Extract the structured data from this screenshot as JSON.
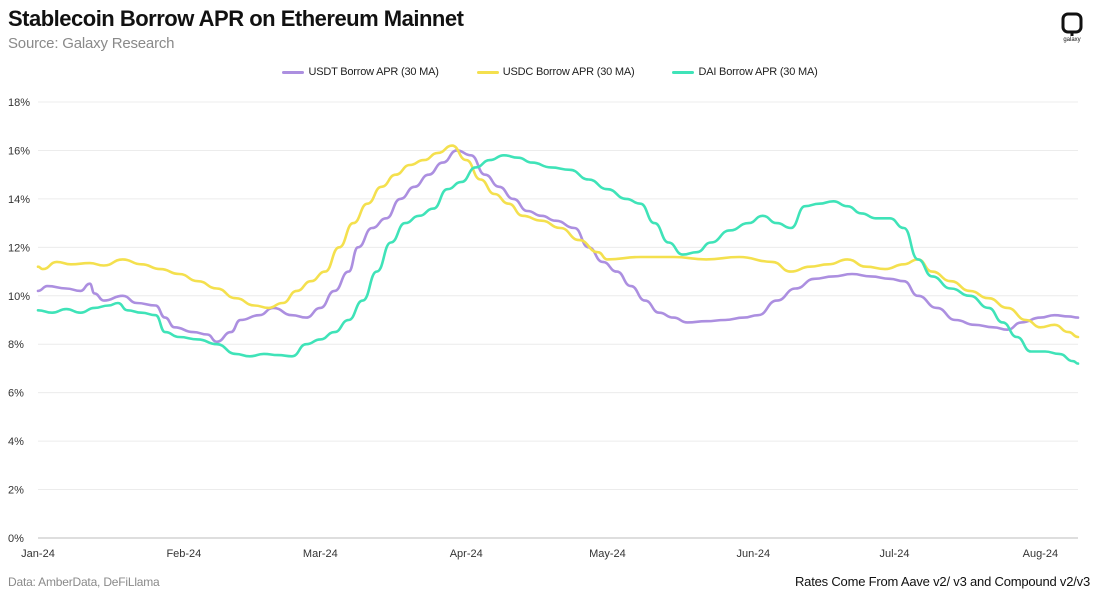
{
  "header": {
    "title": "Stablecoin Borrow APR on Ethereum Mainnet",
    "subtitle": "Source: Galaxy Research",
    "logo_text": "galaxy"
  },
  "footer": {
    "left": "Data: AmberData, DeFiLlama",
    "right": "Rates Come From Aave v2/ v3 and Compound v2/v3"
  },
  "chart_data": {
    "type": "line",
    "title": "Stablecoin Borrow APR on Ethereum Mainnet",
    "xlabel": "",
    "ylabel": "",
    "xlim": [
      "2024-01-01",
      "2024-08-09"
    ],
    "ylim": [
      0,
      18
    ],
    "y_ticks": [
      0,
      2,
      4,
      6,
      8,
      10,
      12,
      14,
      16,
      18
    ],
    "y_tick_labels": [
      "0%",
      "2%",
      "4%",
      "6%",
      "8%",
      "10%",
      "12%",
      "14%",
      "16%",
      "18%"
    ],
    "x_ticks": [
      "2024-01-01",
      "2024-02-01",
      "2024-03-01",
      "2024-04-01",
      "2024-05-01",
      "2024-06-01",
      "2024-07-01",
      "2024-08-01"
    ],
    "x_tick_labels": [
      "Jan-24",
      "Feb-24",
      "Mar-24",
      "Apr-24",
      "May-24",
      "Jun-24",
      "Jul-24",
      "Aug-24"
    ],
    "grid": true,
    "legend_position": "top-center",
    "series": [
      {
        "name": "USDT Borrow APR (30 MA)",
        "color": "#ac8fe0",
        "points": [
          [
            "2024-01-01",
            10.2
          ],
          [
            "2024-01-03",
            10.4
          ],
          [
            "2024-01-07",
            10.3
          ],
          [
            "2024-01-10",
            10.2
          ],
          [
            "2024-01-12",
            10.5
          ],
          [
            "2024-01-13",
            10.1
          ],
          [
            "2024-01-15",
            9.8
          ],
          [
            "2024-01-19",
            10.0
          ],
          [
            "2024-01-22",
            9.7
          ],
          [
            "2024-01-26",
            9.6
          ],
          [
            "2024-01-28",
            9.1
          ],
          [
            "2024-01-30",
            8.7
          ],
          [
            "2024-02-03",
            8.5
          ],
          [
            "2024-02-06",
            8.4
          ],
          [
            "2024-02-08",
            8.1
          ],
          [
            "2024-02-11",
            8.5
          ],
          [
            "2024-02-13",
            9.0
          ],
          [
            "2024-02-17",
            9.2
          ],
          [
            "2024-02-20",
            9.5
          ],
          [
            "2024-02-24",
            9.2
          ],
          [
            "2024-02-27",
            9.1
          ],
          [
            "2024-03-01",
            9.5
          ],
          [
            "2024-03-04",
            10.2
          ],
          [
            "2024-03-07",
            11.0
          ],
          [
            "2024-03-09",
            12.0
          ],
          [
            "2024-03-12",
            12.8
          ],
          [
            "2024-03-15",
            13.2
          ],
          [
            "2024-03-18",
            14.0
          ],
          [
            "2024-03-21",
            14.5
          ],
          [
            "2024-03-24",
            15.0
          ],
          [
            "2024-03-27",
            15.5
          ],
          [
            "2024-03-30",
            16.0
          ],
          [
            "2024-04-02",
            15.8
          ],
          [
            "2024-04-05",
            15.0
          ],
          [
            "2024-04-08",
            14.5
          ],
          [
            "2024-04-11",
            14.0
          ],
          [
            "2024-04-14",
            13.5
          ],
          [
            "2024-04-17",
            13.3
          ],
          [
            "2024-04-20",
            13.1
          ],
          [
            "2024-04-24",
            12.8
          ],
          [
            "2024-04-27",
            12.0
          ],
          [
            "2024-04-30",
            11.4
          ],
          [
            "2024-05-03",
            11.0
          ],
          [
            "2024-05-06",
            10.4
          ],
          [
            "2024-05-09",
            9.8
          ],
          [
            "2024-05-12",
            9.3
          ],
          [
            "2024-05-15",
            9.1
          ],
          [
            "2024-05-18",
            8.9
          ],
          [
            "2024-05-22",
            8.95
          ],
          [
            "2024-05-26",
            9.0
          ],
          [
            "2024-05-30",
            9.1
          ],
          [
            "2024-06-02",
            9.2
          ],
          [
            "2024-06-06",
            9.8
          ],
          [
            "2024-06-10",
            10.3
          ],
          [
            "2024-06-14",
            10.7
          ],
          [
            "2024-06-18",
            10.8
          ],
          [
            "2024-06-22",
            10.9
          ],
          [
            "2024-06-26",
            10.8
          ],
          [
            "2024-06-30",
            10.7
          ],
          [
            "2024-07-03",
            10.6
          ],
          [
            "2024-07-06",
            10.0
          ],
          [
            "2024-07-10",
            9.5
          ],
          [
            "2024-07-14",
            9.0
          ],
          [
            "2024-07-18",
            8.8
          ],
          [
            "2024-07-22",
            8.7
          ],
          [
            "2024-07-25",
            8.6
          ],
          [
            "2024-07-28",
            8.9
          ],
          [
            "2024-08-01",
            9.1
          ],
          [
            "2024-08-04",
            9.2
          ],
          [
            "2024-08-07",
            9.15
          ],
          [
            "2024-08-09",
            9.1
          ]
        ]
      },
      {
        "name": "USDC Borrow APR (30 MA)",
        "color": "#f4e04e",
        "points": [
          [
            "2024-01-01",
            11.2
          ],
          [
            "2024-01-02",
            11.1
          ],
          [
            "2024-01-05",
            11.4
          ],
          [
            "2024-01-08",
            11.3
          ],
          [
            "2024-01-12",
            11.35
          ],
          [
            "2024-01-15",
            11.25
          ],
          [
            "2024-01-19",
            11.5
          ],
          [
            "2024-01-23",
            11.3
          ],
          [
            "2024-01-27",
            11.1
          ],
          [
            "2024-01-31",
            10.9
          ],
          [
            "2024-02-04",
            10.6
          ],
          [
            "2024-02-08",
            10.3
          ],
          [
            "2024-02-12",
            9.9
          ],
          [
            "2024-02-16",
            9.6
          ],
          [
            "2024-02-19",
            9.5
          ],
          [
            "2024-02-22",
            9.7
          ],
          [
            "2024-02-25",
            10.2
          ],
          [
            "2024-02-28",
            10.6
          ],
          [
            "2024-03-02",
            11.0
          ],
          [
            "2024-03-05",
            12.0
          ],
          [
            "2024-03-08",
            13.0
          ],
          [
            "2024-03-11",
            13.8
          ],
          [
            "2024-03-14",
            14.5
          ],
          [
            "2024-03-17",
            15.0
          ],
          [
            "2024-03-20",
            15.4
          ],
          [
            "2024-03-23",
            15.6
          ],
          [
            "2024-03-26",
            15.9
          ],
          [
            "2024-03-29",
            16.2
          ],
          [
            "2024-04-01",
            15.6
          ],
          [
            "2024-04-04",
            14.8
          ],
          [
            "2024-04-07",
            14.2
          ],
          [
            "2024-04-10",
            13.8
          ],
          [
            "2024-04-13",
            13.3
          ],
          [
            "2024-04-17",
            13.1
          ],
          [
            "2024-04-21",
            12.8
          ],
          [
            "2024-04-25",
            12.3
          ],
          [
            "2024-04-29",
            11.8
          ],
          [
            "2024-05-01",
            11.5
          ],
          [
            "2024-05-08",
            11.6
          ],
          [
            "2024-05-15",
            11.6
          ],
          [
            "2024-05-22",
            11.5
          ],
          [
            "2024-05-29",
            11.6
          ],
          [
            "2024-06-05",
            11.4
          ],
          [
            "2024-06-09",
            11.0
          ],
          [
            "2024-06-13",
            11.2
          ],
          [
            "2024-06-17",
            11.3
          ],
          [
            "2024-06-21",
            11.5
          ],
          [
            "2024-06-25",
            11.2
          ],
          [
            "2024-06-29",
            11.1
          ],
          [
            "2024-07-03",
            11.3
          ],
          [
            "2024-07-06",
            11.5
          ],
          [
            "2024-07-09",
            11.0
          ],
          [
            "2024-07-13",
            10.6
          ],
          [
            "2024-07-17",
            10.2
          ],
          [
            "2024-07-21",
            9.9
          ],
          [
            "2024-07-25",
            9.5
          ],
          [
            "2024-07-29",
            9.0
          ],
          [
            "2024-08-01",
            8.7
          ],
          [
            "2024-08-04",
            8.8
          ],
          [
            "2024-08-07",
            8.5
          ],
          [
            "2024-08-09",
            8.3
          ]
        ]
      },
      {
        "name": "DAI Borrow APR (30 MA)",
        "color": "#3fe3b8",
        "points": [
          [
            "2024-01-01",
            9.4
          ],
          [
            "2024-01-04",
            9.3
          ],
          [
            "2024-01-07",
            9.45
          ],
          [
            "2024-01-10",
            9.3
          ],
          [
            "2024-01-13",
            9.5
          ],
          [
            "2024-01-16",
            9.6
          ],
          [
            "2024-01-18",
            9.7
          ],
          [
            "2024-01-20",
            9.4
          ],
          [
            "2024-01-23",
            9.3
          ],
          [
            "2024-01-26",
            9.2
          ],
          [
            "2024-01-28",
            8.5
          ],
          [
            "2024-01-31",
            8.3
          ],
          [
            "2024-02-04",
            8.2
          ],
          [
            "2024-02-08",
            8.0
          ],
          [
            "2024-02-12",
            7.6
          ],
          [
            "2024-02-15",
            7.5
          ],
          [
            "2024-02-18",
            7.6
          ],
          [
            "2024-02-21",
            7.55
          ],
          [
            "2024-02-24",
            7.5
          ],
          [
            "2024-02-27",
            8.0
          ],
          [
            "2024-03-01",
            8.2
          ],
          [
            "2024-03-04",
            8.5
          ],
          [
            "2024-03-07",
            9.0
          ],
          [
            "2024-03-10",
            9.8
          ],
          [
            "2024-03-13",
            11.0
          ],
          [
            "2024-03-16",
            12.2
          ],
          [
            "2024-03-19",
            13.0
          ],
          [
            "2024-03-22",
            13.3
          ],
          [
            "2024-03-25",
            13.6
          ],
          [
            "2024-03-28",
            14.4
          ],
          [
            "2024-03-31",
            14.7
          ],
          [
            "2024-04-03",
            15.3
          ],
          [
            "2024-04-06",
            15.6
          ],
          [
            "2024-04-09",
            15.8
          ],
          [
            "2024-04-12",
            15.7
          ],
          [
            "2024-04-15",
            15.5
          ],
          [
            "2024-04-19",
            15.3
          ],
          [
            "2024-04-23",
            15.2
          ],
          [
            "2024-04-27",
            14.8
          ],
          [
            "2024-05-01",
            14.4
          ],
          [
            "2024-05-05",
            14.0
          ],
          [
            "2024-05-08",
            13.8
          ],
          [
            "2024-05-11",
            13.0
          ],
          [
            "2024-05-14",
            12.2
          ],
          [
            "2024-05-17",
            11.7
          ],
          [
            "2024-05-20",
            11.8
          ],
          [
            "2024-05-23",
            12.2
          ],
          [
            "2024-05-27",
            12.7
          ],
          [
            "2024-05-31",
            13.0
          ],
          [
            "2024-06-03",
            13.3
          ],
          [
            "2024-06-06",
            13.0
          ],
          [
            "2024-06-09",
            12.8
          ],
          [
            "2024-06-12",
            13.7
          ],
          [
            "2024-06-15",
            13.8
          ],
          [
            "2024-06-18",
            13.9
          ],
          [
            "2024-06-21",
            13.7
          ],
          [
            "2024-06-24",
            13.4
          ],
          [
            "2024-06-27",
            13.2
          ],
          [
            "2024-06-30",
            13.2
          ],
          [
            "2024-07-03",
            12.8
          ],
          [
            "2024-07-06",
            11.5
          ],
          [
            "2024-07-09",
            10.8
          ],
          [
            "2024-07-13",
            10.3
          ],
          [
            "2024-07-17",
            10.0
          ],
          [
            "2024-07-21",
            9.5
          ],
          [
            "2024-07-24",
            8.9
          ],
          [
            "2024-07-27",
            8.3
          ],
          [
            "2024-07-30",
            7.7
          ],
          [
            "2024-08-02",
            7.7
          ],
          [
            "2024-08-05",
            7.6
          ],
          [
            "2024-08-08",
            7.3
          ],
          [
            "2024-08-09",
            7.2
          ]
        ]
      }
    ]
  }
}
